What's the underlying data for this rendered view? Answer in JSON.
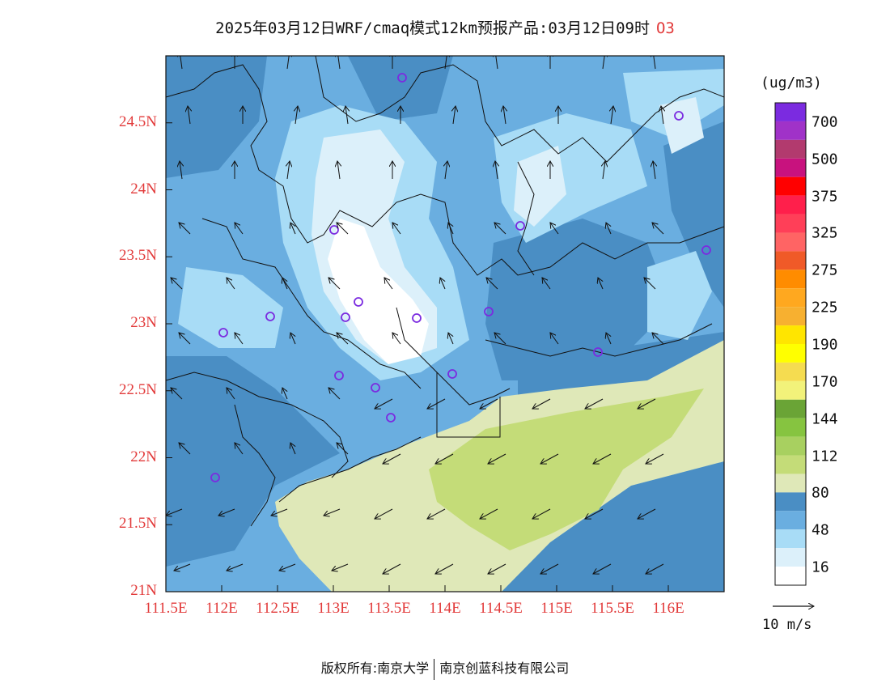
{
  "title": {
    "text": "2025年03月12日WRF/cmaq模式12km预报产品:03月12日09时",
    "species": "O3"
  },
  "axes": {
    "lat_ticks": [
      "24.5N",
      "24N",
      "23.5N",
      "23N",
      "22.5N",
      "22N",
      "21.5N",
      "21N"
    ],
    "lat_values": [
      24.5,
      24,
      23.5,
      23,
      22.5,
      22,
      21.5,
      21
    ],
    "lon_ticks": [
      "111.5E",
      "112E",
      "112.5E",
      "113E",
      "113.5E",
      "114E",
      "114.5E",
      "115E",
      "115.5E",
      "116E"
    ],
    "lon_values": [
      111.5,
      112,
      112.5,
      113,
      113.5,
      114,
      114.5,
      115,
      115.5,
      116
    ],
    "lon_range": [
      111.5,
      116.5
    ],
    "lat_range": [
      21,
      25
    ]
  },
  "colorbar": {
    "unit": "(ug/m3)",
    "labels": [
      "700",
      "500",
      "375",
      "325",
      "275",
      "225",
      "190",
      "170",
      "144",
      "112",
      "80",
      "48",
      "16"
    ],
    "colors": [
      "#7b2be0",
      "#a032c8",
      "#b23a6e",
      "#c8127e",
      "#ff0000",
      "#ff1f4b",
      "#ff3f58",
      "#ff6464",
      "#f05a28",
      "#ff8c00",
      "#ffa81f",
      "#f7b030",
      "#ffe500",
      "#ffff00",
      "#f5dc50",
      "#f2f27a",
      "#6aa436",
      "#86c440",
      "#a8d060",
      "#c4dc78",
      "#dfe8b8",
      "#4a8ec4",
      "#6aaee0",
      "#a8dcf6",
      "#dcf0fa",
      "#ffffff"
    ]
  },
  "wind_reference": {
    "label": "10 m/s"
  },
  "copyright": {
    "left": "版权所有:南京大学",
    "right": "南京创蓝科技有限公司"
  }
}
